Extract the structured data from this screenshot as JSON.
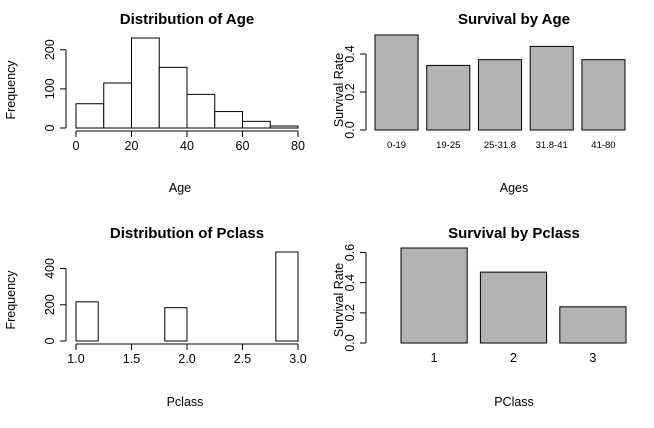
{
  "chart_data": [
    {
      "type": "bar",
      "subtype": "histogram",
      "title": "Distribution of Age",
      "xlabel": "Age",
      "ylabel": "Frequency",
      "bins": [
        {
          "from": 0,
          "to": 10,
          "count": 62
        },
        {
          "from": 10,
          "to": 20,
          "count": 115
        },
        {
          "from": 20,
          "to": 30,
          "count": 230
        },
        {
          "from": 30,
          "to": 40,
          "count": 155
        },
        {
          "from": 40,
          "to": 50,
          "count": 86
        },
        {
          "from": 50,
          "to": 60,
          "count": 42
        },
        {
          "from": 60,
          "to": 70,
          "count": 17
        },
        {
          "from": 70,
          "to": 80,
          "count": 5
        }
      ],
      "xticks": [
        0,
        20,
        40,
        60,
        80
      ],
      "xtick_labels": [
        "0",
        "20",
        "40",
        "60",
        "80"
      ],
      "yticks": [
        0,
        100,
        200
      ],
      "ytick_labels": [
        "0",
        "100",
        "200"
      ],
      "xlim": [
        0,
        80
      ],
      "ylim": [
        0,
        230
      ]
    },
    {
      "type": "bar",
      "title": "Survival by Age",
      "xlabel": "Ages",
      "ylabel": "Survival Rate",
      "categories": [
        "0-19",
        "19-25",
        "25-31.8",
        "31.8-41",
        "41-80"
      ],
      "values": [
        0.5,
        0.34,
        0.37,
        0.44,
        0.37
      ],
      "yticks": [
        0,
        0.2,
        0.4
      ],
      "ytick_labels": [
        "0.0",
        "0.2",
        "0.4"
      ],
      "ylim": [
        0,
        0.5
      ],
      "color": "#b3b3b3"
    },
    {
      "type": "bar",
      "subtype": "histogram",
      "title": "Distribution of Pclass",
      "xlabel": "Pclass",
      "ylabel": "Frequency",
      "bins": [
        {
          "from": 1.0,
          "to": 1.2,
          "count": 216
        },
        {
          "from": 1.2,
          "to": 1.4,
          "count": 0
        },
        {
          "from": 1.4,
          "to": 1.6,
          "count": 0
        },
        {
          "from": 1.6,
          "to": 1.8,
          "count": 0
        },
        {
          "from": 1.8,
          "to": 2.0,
          "count": 184
        },
        {
          "from": 2.0,
          "to": 2.2,
          "count": 0
        },
        {
          "from": 2.2,
          "to": 2.4,
          "count": 0
        },
        {
          "from": 2.4,
          "to": 2.6,
          "count": 0
        },
        {
          "from": 2.6,
          "to": 2.8,
          "count": 0
        },
        {
          "from": 2.8,
          "to": 3.0,
          "count": 491
        }
      ],
      "xticks": [
        1.0,
        1.5,
        2.0,
        2.5,
        3.0
      ],
      "xtick_labels": [
        "1.0",
        "1.5",
        "2.0",
        "2.5",
        "3.0"
      ],
      "yticks": [
        0,
        200,
        400
      ],
      "ytick_labels": [
        "0",
        "200",
        "400"
      ],
      "xlim": [
        1.0,
        3.0
      ],
      "ylim": [
        0,
        491
      ]
    },
    {
      "type": "bar",
      "title": "Survival by Pclass",
      "xlabel": "PClass",
      "ylabel": "Survival Rate",
      "categories": [
        "1",
        "2",
        "3"
      ],
      "values": [
        0.63,
        0.47,
        0.24
      ],
      "yticks": [
        0,
        0.2,
        0.4,
        0.6
      ],
      "ytick_labels": [
        "0.0",
        "0.2",
        "0.4",
        "0.6"
      ],
      "ylim": [
        0,
        0.63
      ],
      "color": "#b3b3b3"
    }
  ]
}
